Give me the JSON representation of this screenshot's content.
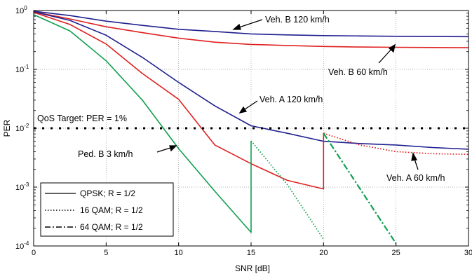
{
  "chart_data": {
    "type": "line",
    "xlabel": "SNR [dB]",
    "ylabel": "PER",
    "xlim": [
      0,
      30
    ],
    "ylim": [
      0.0001,
      1
    ],
    "y_scale": "log",
    "grid": true,
    "x_ticks": [
      0,
      5,
      10,
      15,
      20,
      25,
      30
    ],
    "y_ticks": [
      {
        "value": 1,
        "base": "10",
        "exp": "0"
      },
      {
        "value": 0.1,
        "base": "10",
        "exp": "-1"
      },
      {
        "value": 0.01,
        "base": "10",
        "exp": "-2"
      },
      {
        "value": 0.001,
        "base": "10",
        "exp": "-3"
      },
      {
        "value": 0.0001,
        "base": "10",
        "exp": "-4"
      }
    ],
    "colors": {
      "blue": "#1f1f8f",
      "red": "#e02020",
      "green": "#10a050",
      "black": "#000000"
    },
    "series": [
      {
        "id": "vehB120",
        "color": "blue",
        "style": "solid",
        "x": [
          0,
          2.5,
          5,
          7.5,
          10,
          12.5,
          15,
          17.5,
          20,
          22.5,
          25,
          27.5,
          30
        ],
        "y": [
          0.97,
          0.82,
          0.66,
          0.56,
          0.48,
          0.44,
          0.4,
          0.385,
          0.375,
          0.37,
          0.365,
          0.362,
          0.36
        ]
      },
      {
        "id": "vehB60",
        "color": "red",
        "style": "solid",
        "x": [
          0,
          2.5,
          5,
          7.5,
          10,
          12.5,
          15,
          17.5,
          20,
          22.5,
          25,
          27.5,
          30
        ],
        "y": [
          0.95,
          0.72,
          0.53,
          0.42,
          0.34,
          0.29,
          0.265,
          0.255,
          0.245,
          0.24,
          0.237,
          0.235,
          0.233
        ]
      },
      {
        "id": "vehA120",
        "color": "blue",
        "style": "solid",
        "x": [
          0,
          2.5,
          5,
          7.5,
          10,
          12.5,
          15,
          17.5,
          20,
          22.5,
          25,
          27.5,
          30
        ],
        "y": [
          0.95,
          0.68,
          0.38,
          0.16,
          0.06,
          0.024,
          0.011,
          0.0082,
          0.006,
          0.0055,
          0.0052,
          0.0047,
          0.0044
        ]
      },
      {
        "id": "vehA60-qpsk",
        "color": "red",
        "style": "solid",
        "x": [
          0,
          2.5,
          5,
          7.5,
          10,
          12.5,
          15,
          17.5,
          20,
          20,
          20.1
        ],
        "y": [
          0.93,
          0.58,
          0.27,
          0.085,
          0.031,
          0.0052,
          0.0025,
          0.0013,
          0.00093,
          0.0082,
          0.0082
        ]
      },
      {
        "id": "vehA60-16qam",
        "color": "red",
        "style": "dotted",
        "x": [
          20,
          22.5,
          25,
          27.5,
          30
        ],
        "y": [
          0.0082,
          0.0052,
          0.004,
          0.0037,
          0.0036
        ]
      },
      {
        "id": "pedB3-qpsk",
        "color": "green",
        "style": "solid",
        "x": [
          0,
          2.5,
          5,
          7.5,
          10,
          12.5,
          15,
          15
        ],
        "y": [
          0.85,
          0.45,
          0.14,
          0.03,
          0.0045,
          0.00085,
          0.00017,
          0.0061
        ]
      },
      {
        "id": "pedB3-16qam",
        "color": "green",
        "style": "dotted",
        "x": [
          15,
          17.5,
          20
        ],
        "y": [
          0.0061,
          0.0011,
          0.00013
        ]
      },
      {
        "id": "pedB3-64qam",
        "color": "green",
        "style": "dashdot",
        "x": [
          20,
          25
        ],
        "y": [
          0.0082,
          0.00011
        ]
      },
      {
        "id": "qos",
        "color": "black",
        "style": "qos",
        "x": [
          0,
          30
        ],
        "y": [
          0.01,
          0.01
        ]
      }
    ],
    "annotations": [
      {
        "id": "veh-b-120",
        "text": "Veh. B 120 km/h"
      },
      {
        "id": "veh-b-60",
        "text": "Veh. B 60 km/h"
      },
      {
        "id": "veh-a-120",
        "text": "Veh. A 120 km/h"
      },
      {
        "id": "qos-target",
        "text": "QoS Target: PER = 1%"
      },
      {
        "id": "ped-b-3",
        "text": "Ped. B 3 km/h"
      },
      {
        "id": "veh-a-60",
        "text": "Veh. A 60 km/h"
      }
    ],
    "legend": {
      "position": "bottom-left",
      "entries": [
        {
          "label": "QPSK; R = 1/2",
          "style": "solid"
        },
        {
          "label": "16 QAM; R = 1/2",
          "style": "dotted"
        },
        {
          "label": "64 QAM; R = 1/2",
          "style": "dashdot"
        }
      ]
    }
  }
}
